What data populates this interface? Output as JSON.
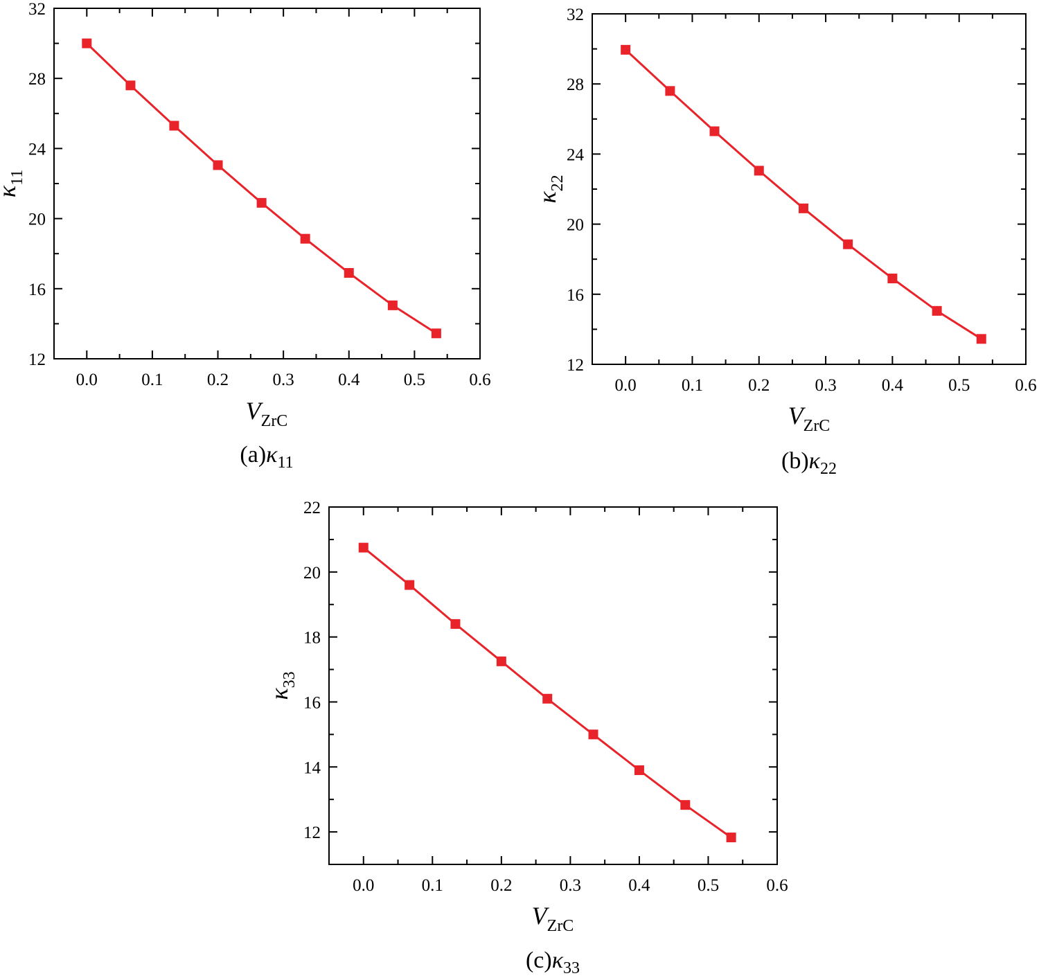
{
  "chart_data": [
    {
      "type": "line",
      "panel": "a",
      "caption_prefix": "(a)",
      "caption_symbol": "κ",
      "caption_subscript": "11",
      "xlabel_symbol": "V",
      "xlabel_subscript": "ZrC",
      "ylabel_symbol": "κ",
      "ylabel_subscript": "11",
      "xlim": [
        -0.05,
        0.6
      ],
      "ylim": [
        12,
        32
      ],
      "xticks": [
        "0.0",
        "0.1",
        "0.2",
        "0.3",
        "0.4",
        "0.5",
        "0.6"
      ],
      "yticks": [
        "12",
        "16",
        "20",
        "24",
        "28",
        "32"
      ],
      "marker": "square",
      "color": "#e8232a",
      "series": [
        {
          "name": "κ11",
          "x": [
            0,
            0.0667,
            0.1333,
            0.2,
            0.2667,
            0.3333,
            0.4,
            0.4667,
            0.5333
          ],
          "y": [
            30.0,
            27.6,
            25.3,
            23.05,
            20.9,
            18.85,
            16.9,
            15.05,
            13.45
          ]
        }
      ]
    },
    {
      "type": "line",
      "panel": "b",
      "caption_prefix": "(b)",
      "caption_symbol": "κ",
      "caption_subscript": "22",
      "xlabel_symbol": "V",
      "xlabel_subscript": "ZrC",
      "ylabel_symbol": "κ",
      "ylabel_subscript": "22",
      "xlim": [
        -0.05,
        0.6
      ],
      "ylim": [
        12,
        32
      ],
      "xticks": [
        "0.0",
        "0.1",
        "0.2",
        "0.3",
        "0.4",
        "0.5",
        "0.6"
      ],
      "yticks": [
        "12",
        "16",
        "20",
        "24",
        "28",
        "32"
      ],
      "marker": "square",
      "color": "#e8232a",
      "series": [
        {
          "name": "κ22",
          "x": [
            0,
            0.0667,
            0.1333,
            0.2,
            0.2667,
            0.3333,
            0.4,
            0.4667,
            0.5333
          ],
          "y": [
            29.95,
            27.6,
            25.3,
            23.05,
            20.9,
            18.85,
            16.9,
            15.05,
            13.45
          ]
        }
      ]
    },
    {
      "type": "line",
      "panel": "c",
      "caption_prefix": "(c)",
      "caption_symbol": "κ",
      "caption_subscript": "33",
      "xlabel_symbol": "V",
      "xlabel_subscript": "ZrC",
      "ylabel_symbol": "κ",
      "ylabel_subscript": "33",
      "xlim": [
        -0.05,
        0.6
      ],
      "ylim": [
        11,
        22
      ],
      "xticks": [
        "0.0",
        "0.1",
        "0.2",
        "0.3",
        "0.4",
        "0.5",
        "0.6"
      ],
      "yticks": [
        "12",
        "14",
        "16",
        "18",
        "20",
        "22"
      ],
      "marker": "square",
      "color": "#e8232a",
      "series": [
        {
          "name": "κ33",
          "x": [
            0,
            0.0667,
            0.1333,
            0.2,
            0.2667,
            0.3333,
            0.4,
            0.4667,
            0.5333
          ],
          "y": [
            20.75,
            19.6,
            18.4,
            17.25,
            16.1,
            15.0,
            13.9,
            12.83,
            11.83
          ]
        }
      ]
    }
  ]
}
